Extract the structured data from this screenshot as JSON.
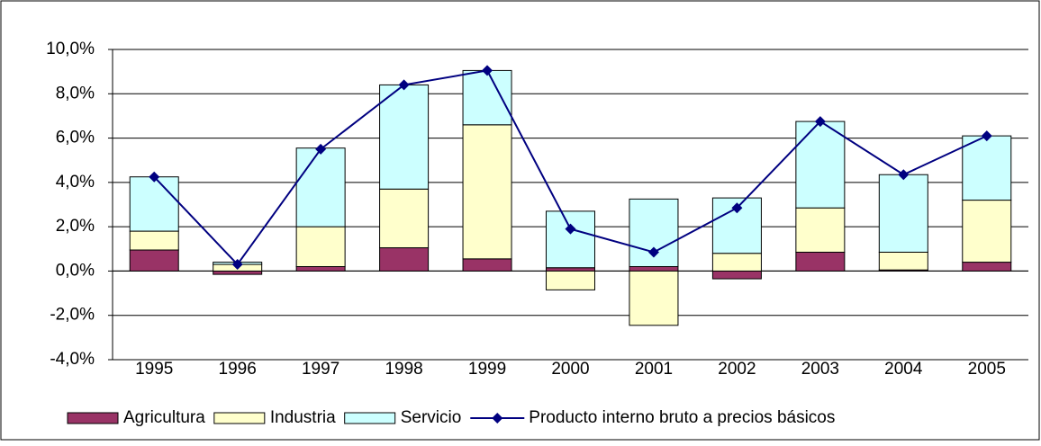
{
  "chart_data": {
    "type": "bar",
    "categories": [
      "1995",
      "1996",
      "1997",
      "1998",
      "1999",
      "2000",
      "2001",
      "2002",
      "2003",
      "2004",
      "2005"
    ],
    "series": [
      {
        "name": "Agricultura",
        "color": "#993366",
        "values": [
          0.95,
          -0.15,
          0.2,
          1.05,
          0.55,
          0.15,
          0.2,
          -0.35,
          0.85,
          0.05,
          0.4
        ]
      },
      {
        "name": "Industria",
        "color": "#ffffcc",
        "values": [
          0.85,
          0.3,
          1.8,
          2.65,
          6.05,
          -0.85,
          -2.45,
          0.8,
          2.0,
          0.8,
          2.8
        ]
      },
      {
        "name": "Servicio",
        "color": "#ccffff",
        "values": [
          2.45,
          0.1,
          3.55,
          4.7,
          2.45,
          2.55,
          3.05,
          2.5,
          3.9,
          3.5,
          2.9
        ]
      },
      {
        "name": "Producto interno bruto a precios básicos",
        "type": "line",
        "color": "#000080",
        "values": [
          4.25,
          0.3,
          5.5,
          8.4,
          9.05,
          1.9,
          0.85,
          2.85,
          6.75,
          4.35,
          6.1
        ]
      }
    ],
    "ylim": [
      -4,
      10
    ],
    "yticks": [
      {
        "value": -4,
        "label": "-4,0%"
      },
      {
        "value": -2,
        "label": "-2,0%"
      },
      {
        "value": 0,
        "label": "0,0%"
      },
      {
        "value": 2,
        "label": "2,0%"
      },
      {
        "value": 4,
        "label": "4,0%"
      },
      {
        "value": 6,
        "label": "6,0%"
      },
      {
        "value": 8,
        "label": "8,0%"
      },
      {
        "value": 10,
        "label": "10,0%"
      }
    ],
    "grid": true,
    "legend": "bottom"
  }
}
